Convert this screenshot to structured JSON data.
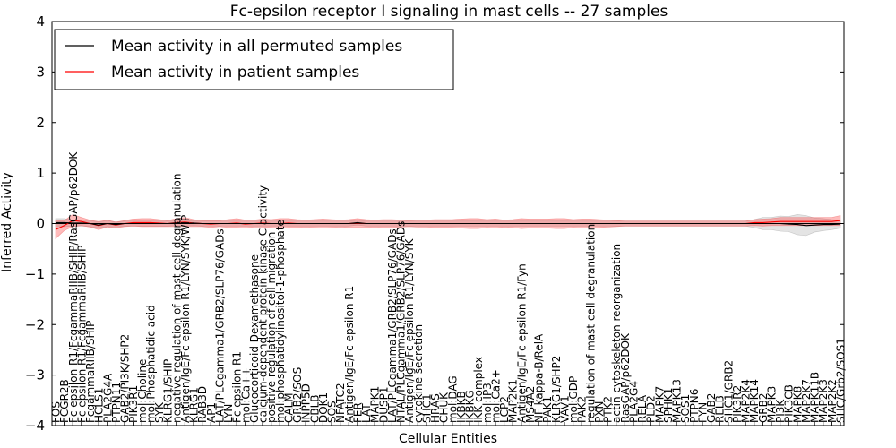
{
  "chart_data": {
    "type": "line",
    "title": "Fc-epsilon receptor I signaling in mast cells -- 27 samples",
    "xlabel": "Cellular Entities",
    "ylabel": "Inferred Activity",
    "ylim": [
      -4,
      4
    ],
    "yticks": [
      -4,
      -3,
      -2,
      -1,
      0,
      1,
      2,
      3,
      4
    ],
    "yticklabels": [
      "−4",
      "−3",
      "−2",
      "−1",
      "0",
      "1",
      "2",
      "3",
      "4"
    ],
    "grid": false,
    "legend_position": "top-left",
    "categories": [
      "FOS",
      "FCGR2B",
      "Fc epsilon R1/FcgammaRIIB/SHIP/RasGAP/p62DOK",
      "Fc epsilon R1/FcgammaRIIB/SHIP",
      "FcgammaRIIB/SHIP",
      "HCLS1",
      "PLA2G4A",
      "PTPN11",
      "GAB2/PI3K/SHP2",
      "PIK3R1",
      "mol:Choline",
      "mol:Phosphatidic acid",
      "SYK",
      "KLRG1/SHIP",
      "negative regulation of mast cell degranulation",
      "Antigen/IgE/Fc epsilon R1/LYN/SYK/WIP",
      "KLRG1",
      "RAB3D",
      "AP1",
      "LAT/PLCgamma1/GRB2/SLP76/GADs",
      "LYN",
      "Fc epsilon R1",
      "mol:Ca++",
      "Glucocorticoid Dexamethasone",
      "calcium-dependent protein kinase C activity",
      "positive regulation of cell migration",
      "mol:phosphatidylinositol-1-phosphate",
      "CALM",
      "GRB2/SOS",
      "INPP5D",
      "CBLB",
      "DOK1",
      "SOS",
      "NFATC2",
      "Antigen/IgE/Fc epsilon R1",
      "FER",
      "LAT",
      "MAPK1",
      "DUSP1",
      "LAT/PLCgamma1/GRB2/SLP76/GADs",
      "NTAL/PLCgamma1/GRB2/SLP76/GADs",
      "Antigen/IgE/Fc epsilon R1/LYN/SYK",
      "cytokine secretion",
      "SHC1",
      "HRAS",
      "CHUK",
      "mol:DAG",
      "IKBKB",
      "IKBKG",
      "IKK complex",
      "mol:IP3",
      "mol:Ca2+",
      "LCP2",
      "MAP2K1",
      "Antigen/IgE/Fc epsilon R1/Fyn",
      "MS4A2",
      "NF kappa-B/RelA",
      "PAK1",
      "KLRG1/SHP2",
      "VAV1",
      "mol:GDP",
      "PAK2",
      "regulation of mast cell degranulation",
      "PXN",
      "PTK2",
      "actin cytoskeleton reorganization",
      "RasGAP/p62DOK",
      "PLA2G4",
      "RELA",
      "PLD2",
      "MAPK7",
      "SPHK1",
      "MAPK13",
      "SOS1",
      "PTPN6",
      "FYN",
      "GAB2",
      "RELB",
      "SHC1/GRB2",
      "PIK3R2",
      "MAP2K4",
      "MAPK14",
      "GRB2",
      "MAPK3",
      "PI3K",
      "PIK3CB",
      "MAPK8",
      "MAP2K7",
      "MAPK11B",
      "MAP2K3",
      "MAP2K2",
      "SHC/Grb2/SOS1"
    ],
    "series": [
      {
        "name": "Mean activity in all permuted samples",
        "color": "#000000",
        "values": [
          0.02,
          0.02,
          0.01,
          0.01,
          0.0,
          -0.03,
          0.0,
          -0.02,
          0.0,
          0.0,
          0.0,
          0.0,
          0.0,
          0.0,
          0.01,
          0.0,
          0.01,
          0.0,
          0.0,
          0.0,
          0.0,
          0.0,
          0.0,
          0.0,
          0.0,
          0.0,
          0.0,
          0.0,
          0.0,
          0.0,
          0.0,
          0.0,
          0.0,
          0.0,
          0.0,
          0.02,
          0.0,
          0.0,
          0.0,
          0.0,
          0.0,
          0.0,
          0.0,
          0.0,
          0.0,
          0.0,
          0.0,
          0.0,
          0.0,
          0.0,
          0.0,
          0.0,
          0.0,
          0.0,
          0.0,
          0.0,
          0.0,
          0.0,
          0.0,
          0.0,
          0.0,
          0.0,
          0.0,
          0.0,
          0.0,
          0.0,
          0.0,
          0.0,
          0.0,
          0.0,
          0.0,
          0.0,
          0.0,
          0.0,
          0.0,
          0.0,
          0.0,
          0.0,
          0.0,
          0.0,
          0.0,
          0.0,
          0.0,
          0.0,
          0.0,
          -0.01,
          -0.02,
          -0.04,
          -0.03,
          -0.02,
          -0.02,
          -0.01
        ],
        "band": [
          0.08,
          0.08,
          0.06,
          0.06,
          0.06,
          0.06,
          0.06,
          0.05,
          0.05,
          0.05,
          0.05,
          0.05,
          0.05,
          0.05,
          0.05,
          0.05,
          0.05,
          0.05,
          0.05,
          0.05,
          0.05,
          0.05,
          0.05,
          0.05,
          0.05,
          0.05,
          0.05,
          0.05,
          0.05,
          0.05,
          0.05,
          0.05,
          0.05,
          0.05,
          0.05,
          0.05,
          0.05,
          0.05,
          0.05,
          0.05,
          0.05,
          0.05,
          0.05,
          0.05,
          0.05,
          0.05,
          0.05,
          0.05,
          0.05,
          0.05,
          0.05,
          0.05,
          0.05,
          0.05,
          0.05,
          0.05,
          0.05,
          0.05,
          0.05,
          0.05,
          0.05,
          0.05,
          0.05,
          0.05,
          0.05,
          0.05,
          0.05,
          0.05,
          0.05,
          0.05,
          0.05,
          0.05,
          0.05,
          0.05,
          0.05,
          0.05,
          0.05,
          0.05,
          0.05,
          0.05,
          0.05,
          0.08,
          0.12,
          0.12,
          0.15,
          0.15,
          0.2,
          0.2,
          0.14,
          0.12,
          0.1,
          0.08
        ]
      },
      {
        "name": "Mean activity in patient samples",
        "color": "#ff0000",
        "values": [
          -0.12,
          -0.04,
          0.06,
          0.04,
          0.0,
          -0.04,
          0.0,
          -0.03,
          0.0,
          0.02,
          0.02,
          0.02,
          0.01,
          0.0,
          0.02,
          0.03,
          0.01,
          0.0,
          -0.01,
          0.0,
          0.0,
          0.01,
          -0.01,
          0.0,
          0.01,
          0.0,
          0.0,
          0.01,
          0.0,
          0.0,
          0.0,
          0.0,
          0.0,
          0.0,
          0.0,
          0.01,
          0.0,
          0.0,
          0.0,
          0.0,
          0.0,
          0.0,
          0.0,
          0.0,
          0.0,
          0.0,
          0.0,
          0.0,
          0.0,
          0.0,
          0.0,
          0.0,
          0.0,
          0.0,
          0.0,
          0.0,
          0.0,
          0.0,
          0.0,
          0.0,
          0.0,
          0.0,
          0.0,
          0.0,
          0.0,
          0.0,
          0.0,
          0.0,
          0.0,
          0.0,
          0.0,
          0.0,
          0.0,
          0.0,
          0.0,
          0.0,
          0.0,
          0.0,
          0.0,
          0.0,
          0.0,
          0.02,
          0.02,
          0.03,
          0.04,
          0.04,
          0.04,
          0.04,
          0.04,
          0.04,
          0.04,
          0.06
        ],
        "band": [
          0.18,
          0.1,
          0.12,
          0.08,
          0.07,
          0.08,
          0.07,
          0.06,
          0.06,
          0.07,
          0.08,
          0.08,
          0.07,
          0.06,
          0.08,
          0.09,
          0.07,
          0.06,
          0.07,
          0.06,
          0.08,
          0.09,
          0.08,
          0.07,
          0.08,
          0.08,
          0.1,
          0.09,
          0.08,
          0.07,
          0.08,
          0.09,
          0.08,
          0.07,
          0.08,
          0.09,
          0.08,
          0.07,
          0.08,
          0.08,
          0.07,
          0.06,
          0.07,
          0.07,
          0.08,
          0.08,
          0.08,
          0.09,
          0.1,
          0.1,
          0.08,
          0.09,
          0.07,
          0.08,
          0.1,
          0.09,
          0.09,
          0.09,
          0.1,
          0.1,
          0.08,
          0.09,
          0.09,
          0.08,
          0.07,
          0.06,
          0.05,
          0.05,
          0.05,
          0.05,
          0.05,
          0.05,
          0.05,
          0.05,
          0.05,
          0.05,
          0.05,
          0.05,
          0.05,
          0.05,
          0.05,
          0.06,
          0.07,
          0.07,
          0.08,
          0.08,
          0.08,
          0.08,
          0.08,
          0.08,
          0.08,
          0.1
        ]
      }
    ],
    "legend": [
      "Mean activity in all permuted samples",
      "Mean activity in patient samples"
    ]
  }
}
